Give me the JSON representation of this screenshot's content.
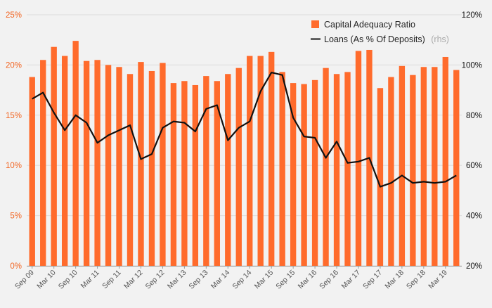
{
  "chart_data": {
    "type": "bar",
    "title": "",
    "legend_placement": "top-right",
    "grid": true,
    "colors": {
      "bar": "#ff6b2c",
      "line": "#111111",
      "left_axis_text": "#f26522",
      "grid": "#dcdcdc",
      "background": "#f2f2f2"
    },
    "left_axis": {
      "ylim": [
        0,
        25
      ],
      "ticks": [
        0,
        5,
        10,
        15,
        20,
        25
      ],
      "tick_labels": [
        "0%",
        "5%",
        "10%",
        "15%",
        "20%",
        "25%"
      ]
    },
    "right_axis": {
      "ylim": [
        20,
        120
      ],
      "ticks": [
        20,
        40,
        60,
        80,
        100,
        120
      ],
      "tick_labels": [
        "20%",
        "40%",
        "60%",
        "80%",
        "100%",
        "120%"
      ]
    },
    "x_tick_labels": [
      "Sep 09",
      "Mar 10",
      "Sep 10",
      "Mar 11",
      "Sep 11",
      "Mar 12",
      "Sep 12",
      "Mar 13",
      "Sep 13",
      "Mar 14",
      "Sep 14",
      "Mar 15",
      "Sep 15",
      "Mar 16",
      "Sep 16",
      "Mar 17",
      "Sep 17",
      "Mar 18",
      "Sep 18",
      "Mar 19"
    ],
    "legend": [
      {
        "label": "Capital Adequacy Ratio",
        "note": ""
      },
      {
        "label": "Loans (As % Of Deposits)",
        "note": "(rhs)"
      }
    ],
    "series": [
      {
        "name": "Capital Adequacy Ratio",
        "type": "bar",
        "axis": "left",
        "values": [
          18.8,
          20.5,
          21.8,
          20.9,
          22.4,
          20.4,
          20.5,
          20.0,
          19.8,
          19.1,
          20.3,
          19.4,
          20.2,
          18.2,
          18.4,
          18.0,
          18.9,
          18.4,
          19.1,
          19.7,
          20.9,
          20.9,
          21.3,
          19.3,
          18.2,
          18.1,
          18.5,
          19.7,
          19.1,
          19.3,
          21.4,
          21.5,
          17.7,
          18.8,
          19.9,
          19.0,
          19.8,
          19.8,
          20.8,
          19.5
        ]
      },
      {
        "name": "Loans (As % Of Deposits)",
        "type": "line",
        "axis": "right",
        "values": [
          86.5,
          89.0,
          81.0,
          74.0,
          80.0,
          77.0,
          69.0,
          72.0,
          74.0,
          76.0,
          62.5,
          64.5,
          75.0,
          77.5,
          77.0,
          73.5,
          82.5,
          84.0,
          70.0,
          75.0,
          77.5,
          89.5,
          97.0,
          96.0,
          79.0,
          71.5,
          71.0,
          63.0,
          69.5,
          61.0,
          61.5,
          63.0,
          51.5,
          53.0,
          56.0,
          53.0,
          53.5,
          53.0,
          53.5,
          56.0
        ]
      }
    ]
  }
}
